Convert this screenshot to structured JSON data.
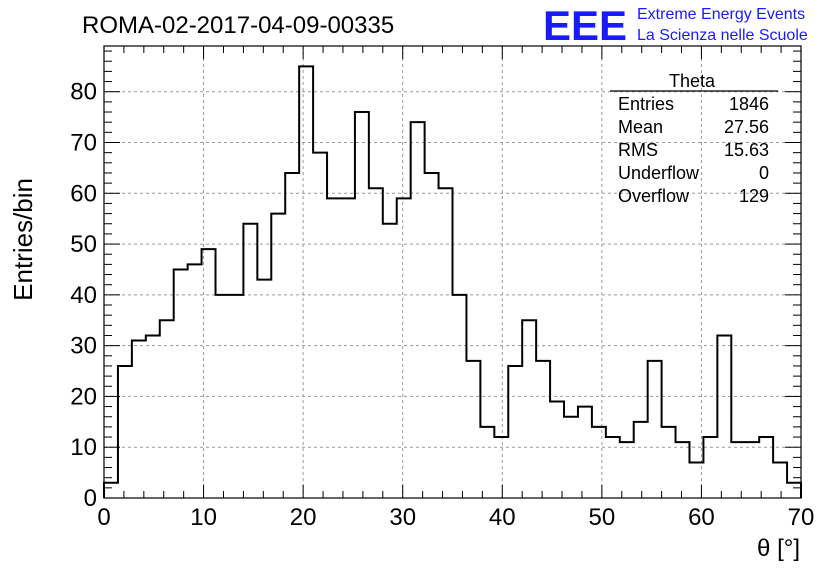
{
  "header": {
    "title": "ROMA-02-2017-04-09-00335",
    "logo_text": "EEE",
    "logo_line1": "Extreme Energy Events",
    "logo_line2": "La Scienza nelle Scuole"
  },
  "stats_box": {
    "name": "Theta",
    "rows": [
      {
        "label": "Entries",
        "value": "1846"
      },
      {
        "label": "Mean",
        "value": "27.56"
      },
      {
        "label": "RMS",
        "value": "15.63"
      },
      {
        "label": "Underflow",
        "value": "0"
      },
      {
        "label": "Overflow",
        "value": "129"
      }
    ]
  },
  "colors": {
    "logo": "#1a1aff",
    "line": "#000000",
    "grid": "#9a9a9a"
  },
  "chart_data": {
    "type": "bar",
    "histogram": true,
    "title": "ROMA-02-2017-04-09-00335",
    "xlabel": "θ [°]",
    "ylabel": "Entries/bin",
    "xlim": [
      0,
      70
    ],
    "ylim": [
      0,
      89
    ],
    "grid": true,
    "bin_width": 1.4,
    "x_ticks": [
      0,
      10,
      20,
      30,
      40,
      50,
      60,
      70
    ],
    "y_ticks": [
      0,
      10,
      20,
      30,
      40,
      50,
      60,
      70,
      80
    ],
    "values": [
      3,
      26,
      31,
      32,
      35,
      45,
      46,
      49,
      40,
      40,
      54,
      43,
      56,
      64,
      85,
      68,
      59,
      59,
      76,
      61,
      54,
      59,
      74,
      64,
      61,
      40,
      27,
      14,
      12,
      26,
      35,
      27,
      19,
      16,
      18,
      14,
      12,
      11,
      15,
      27,
      14,
      11,
      7,
      12,
      32,
      11,
      11,
      12,
      7,
      3
    ]
  }
}
